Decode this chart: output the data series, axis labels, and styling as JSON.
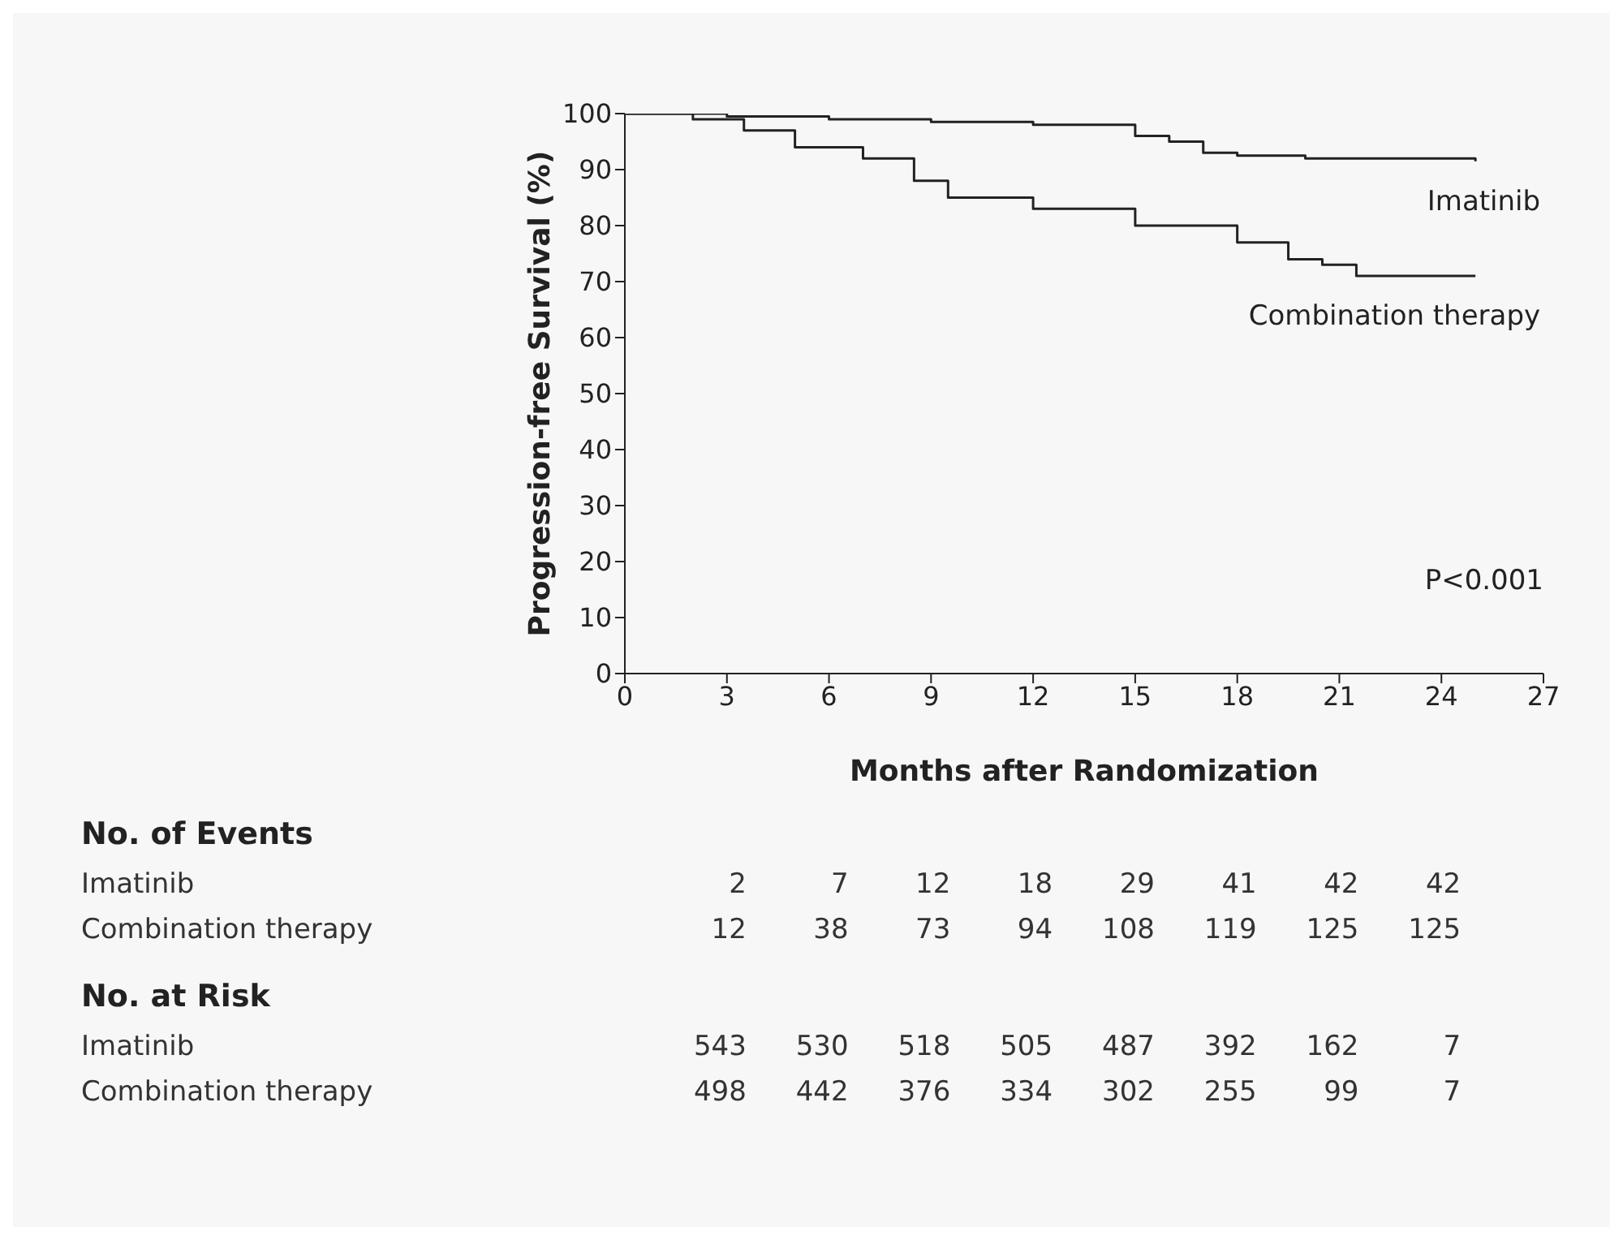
{
  "chart_data": {
    "type": "step",
    "xlabel": "Months after Randomization",
    "ylabel": "Progression-free Survival (%)",
    "xlim": [
      0,
      27
    ],
    "xticks": [
      0,
      3,
      6,
      9,
      12,
      15,
      18,
      21,
      24,
      27
    ],
    "ylim": [
      0,
      100
    ],
    "yticks": [
      0,
      10,
      20,
      30,
      40,
      50,
      60,
      70,
      80,
      90,
      100
    ],
    "grid": false,
    "marker": "none",
    "line_style": "solid",
    "series": [
      {
        "name": "Imatinib",
        "color": "#222222",
        "x": [
          0,
          3,
          6,
          9,
          12,
          15,
          16,
          17,
          18,
          20,
          25
        ],
        "values": [
          100,
          99.5,
          99,
          98.5,
          98,
          96,
          95,
          93,
          92.5,
          92,
          91.5
        ]
      },
      {
        "name": "Combination therapy",
        "color": "#222222",
        "x": [
          0,
          2,
          3.5,
          5,
          7,
          8.5,
          9.5,
          12,
          15,
          18,
          19.5,
          20.5,
          21.5,
          25
        ],
        "values": [
          100,
          99,
          97,
          94,
          92,
          88,
          85,
          83,
          80,
          77,
          74,
          73,
          71,
          71
        ]
      }
    ],
    "annotations": [
      "P<0.001",
      "No. of Events",
      "Imatinib",
      "2",
      "7",
      "12",
      "18",
      "29",
      "41",
      "42",
      "42",
      "Combination therapy",
      "12",
      "38",
      "73",
      "94",
      "108",
      "119",
      "125",
      "125",
      "No. at Risk",
      "Imatinib",
      "543",
      "530",
      "518",
      "505",
      "487",
      "392",
      "162",
      "7",
      "Combination therapy",
      "498",
      "442",
      "376",
      "334",
      "302",
      "255",
      "99",
      "7"
    ]
  }
}
